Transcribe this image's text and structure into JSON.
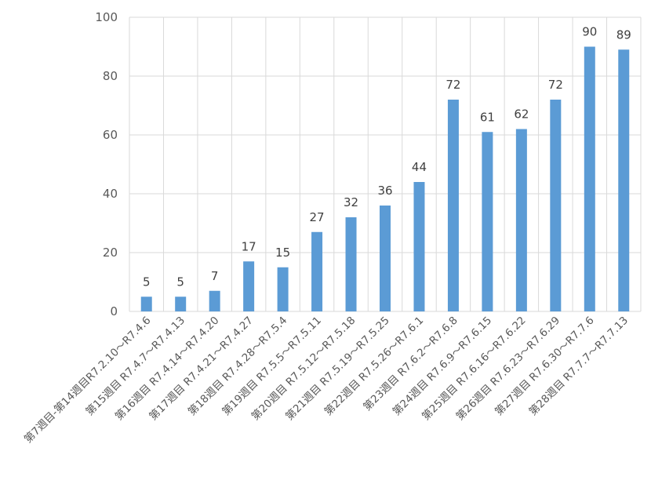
{
  "chart_data": {
    "type": "bar",
    "title": "",
    "xlabel": "",
    "ylabel": "",
    "ylim": [
      0,
      100
    ],
    "yticks": [
      0,
      20,
      40,
      60,
      80,
      100
    ],
    "grid": true,
    "categories": [
      "第7週目-第14週目R7.2.10〜R7.4.6",
      "第15週目 R7.4.7〜R7.4.13",
      "第16週目 R7.4.14〜R7.4.20",
      "第17週目 R7.4.21〜R7.4.27",
      "第18週目 R7.4.28〜R7.5.4",
      "第19週目 R7.5.5〜R7.5.11",
      "第20週目 R7.5.12〜R7.5.18",
      "第21週目 R7.5.19〜R7.5.25",
      "第22週目 R7.5.26〜R7.6.1",
      "第23週目 R7.6.2〜R7.6.8",
      "第24週目 R7.6.9〜R7.6.15",
      "第25週目 R7.6.16〜R7.6.22",
      "第26週目 R7.6.23〜R7.6.29",
      "第27週目 R7.6.30〜R7.7.6",
      "第28週目 R7.7.7〜R7.7.13"
    ],
    "values": [
      5,
      5,
      7,
      17,
      15,
      27,
      32,
      36,
      44,
      72,
      61,
      62,
      72,
      90,
      89
    ],
    "bar_color": "#5B9BD5",
    "grid_color": "#D9D9D9"
  }
}
